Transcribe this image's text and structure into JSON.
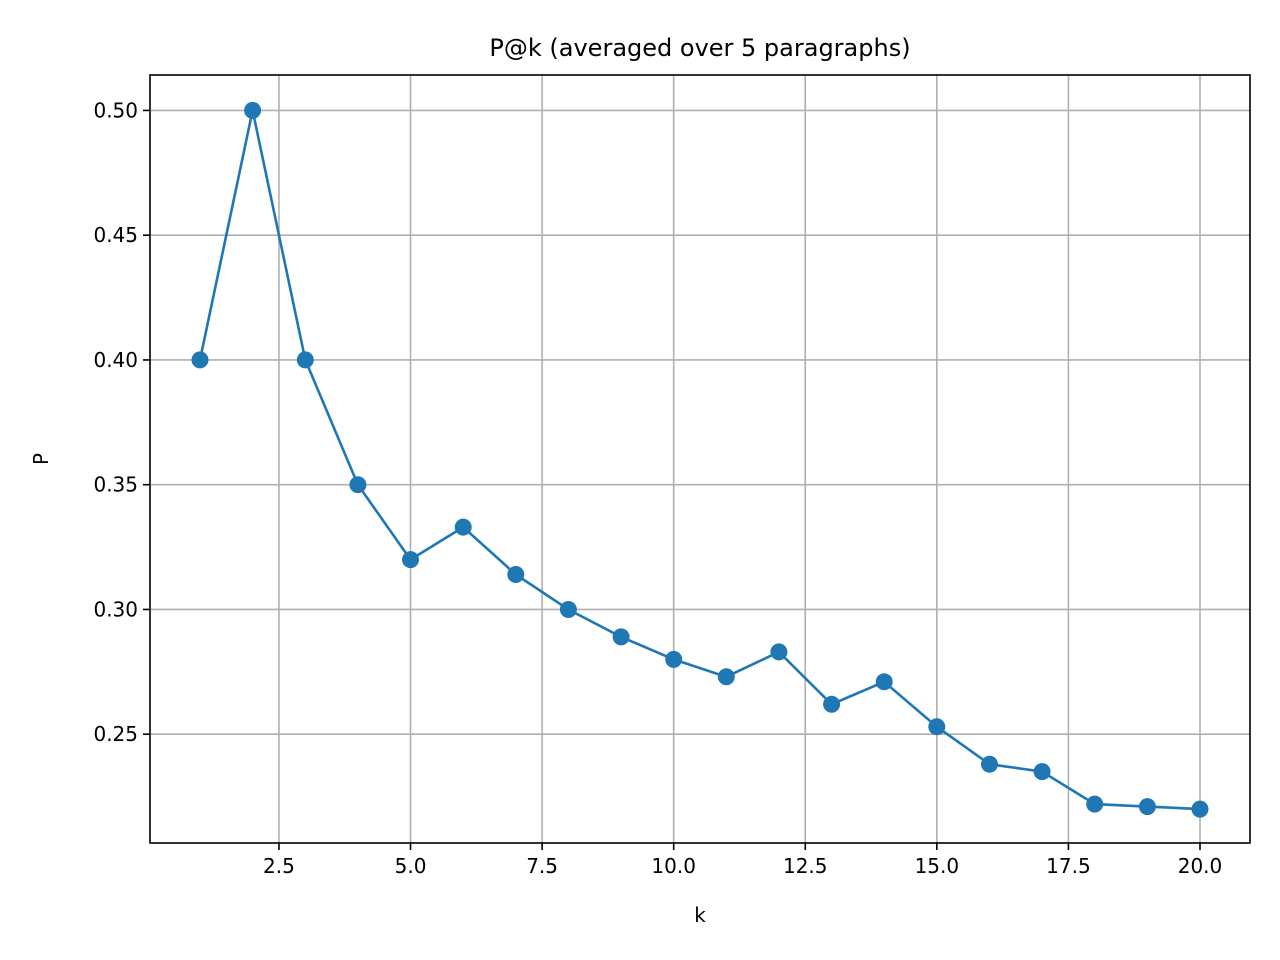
{
  "chart_data": {
    "type": "line",
    "title": "P@k  (averaged over 5 paragraphs)",
    "xlabel": "k",
    "ylabel": "P",
    "xlim": [
      0.05,
      20.95
    ],
    "ylim": [
      0.2064,
      0.5142
    ],
    "grid": true,
    "color": "#1f77b4",
    "xticks": [
      "2.5",
      "5.0",
      "7.5",
      "10.0",
      "12.5",
      "15.0",
      "17.5",
      "20.0"
    ],
    "xtick_values": [
      2.5,
      5.0,
      7.5,
      10.0,
      12.5,
      15.0,
      17.5,
      20.0
    ],
    "yticks": [
      "0.25",
      "0.30",
      "0.35",
      "0.40",
      "0.45",
      "0.50"
    ],
    "ytick_values": [
      0.25,
      0.3,
      0.35,
      0.4,
      0.45,
      0.5
    ],
    "series": [
      {
        "x": [
          1,
          2,
          3,
          4,
          5,
          6,
          7,
          8,
          9,
          10,
          11,
          12,
          13,
          14,
          15,
          16,
          17,
          18,
          19,
          20
        ],
        "values": [
          0.4,
          0.5,
          0.4,
          0.35,
          0.32,
          0.333,
          0.314,
          0.3,
          0.289,
          0.28,
          0.273,
          0.283,
          0.262,
          0.271,
          0.253,
          0.238,
          0.235,
          0.222,
          0.221,
          0.22
        ]
      }
    ]
  }
}
